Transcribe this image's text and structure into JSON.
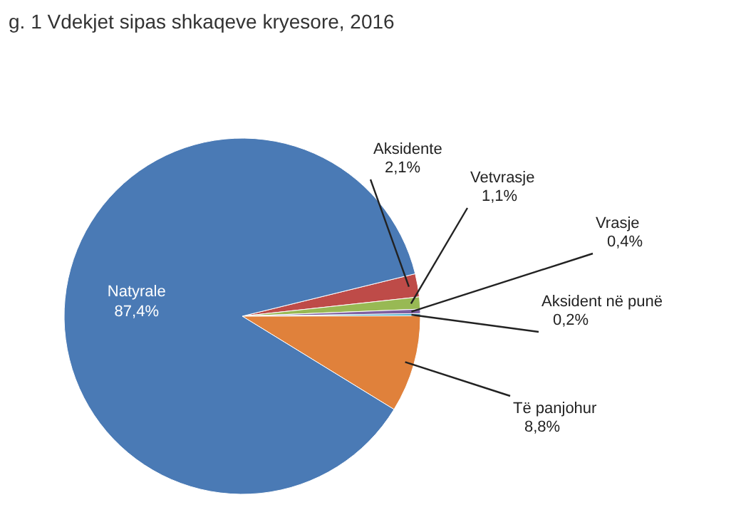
{
  "chart_data": {
    "type": "pie",
    "title": "g. 1 Vdekjet sipas shkaqeve kryesore, 2016",
    "categories": [
      "Aksidente",
      "Vetvrasje",
      "Vrasje",
      "Aksident në punë",
      "Të panjohur",
      "Natyrale"
    ],
    "values": [
      2.1,
      1.1,
      0.4,
      0.2,
      8.8,
      87.4
    ],
    "value_labels": [
      "2,1%",
      "1,1%",
      "0,4%",
      "0,2%",
      "8,8%",
      "87,4%"
    ],
    "colors": [
      "#be4b48",
      "#98b954",
      "#7d5fa0",
      "#4bacc6",
      "#e0813b",
      "#4a7ab5"
    ]
  }
}
